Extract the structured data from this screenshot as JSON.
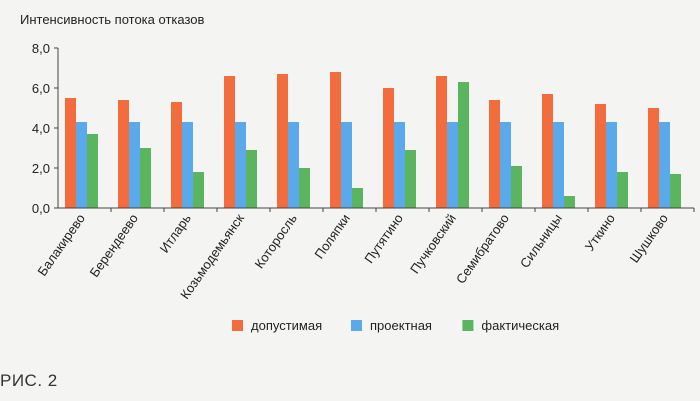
{
  "chart_data": {
    "type": "bar",
    "title": "Интенсивность потока отказов",
    "categories": [
      "Балакирево",
      "Берендеево",
      "Итларь",
      "Козьмодемьянск",
      "Которосль",
      "Поляпки",
      "Путятино",
      "Пучковский",
      "Семибратово",
      "Сильницы",
      "Уткино",
      "Шушково"
    ],
    "series": [
      {
        "name": "допустимая",
        "color": "#f26c3d",
        "values": [
          5.5,
          5.4,
          5.3,
          6.6,
          6.7,
          6.8,
          6.0,
          6.6,
          5.4,
          5.7,
          5.2,
          5.0
        ]
      },
      {
        "name": "проектная",
        "color": "#5aa9ea",
        "values": [
          4.3,
          4.3,
          4.3,
          4.3,
          4.3,
          4.3,
          4.3,
          4.3,
          4.3,
          4.3,
          4.3,
          4.3
        ]
      },
      {
        "name": "фактическая",
        "color": "#5bb45e",
        "values": [
          3.7,
          3.0,
          1.8,
          2.9,
          2.0,
          1.0,
          2.9,
          6.3,
          2.1,
          0.6,
          1.8,
          1.7
        ]
      }
    ],
    "y_ticks": [
      "0,0",
      "2,0",
      "4,0",
      "6,0",
      "8,0"
    ],
    "ylim": [
      0,
      8
    ],
    "grid": false,
    "legend_position": "bottom"
  },
  "caption": "РИС. 2"
}
